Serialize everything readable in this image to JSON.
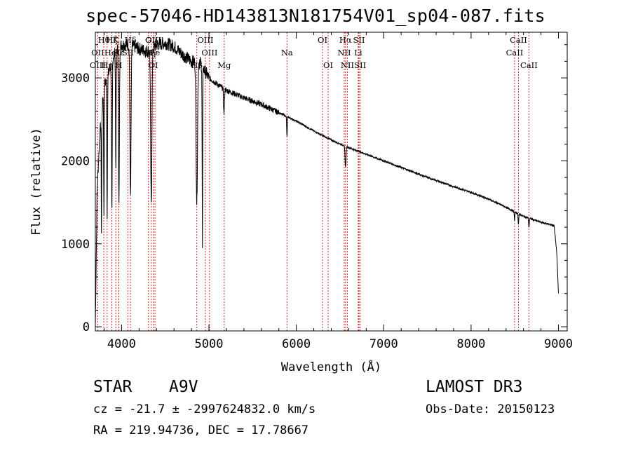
{
  "chart_data": {
    "type": "line",
    "title": "spec-57046-HD143813N181754V01_sp04-087.fits",
    "xlabel": "Wavelength (Å)",
    "ylabel": "Flux (relative)",
    "xlim": [
      3700,
      9100
    ],
    "ylim": [
      -50,
      3550
    ],
    "x_ticks": [
      4000,
      5000,
      6000,
      7000,
      8000,
      9000
    ],
    "y_ticks": [
      0,
      1000,
      2000,
      3000
    ],
    "spectrum": {
      "continuum": [
        [
          3700,
          0
        ],
        [
          3720,
          1650
        ],
        [
          3750,
          2300
        ],
        [
          3800,
          2900
        ],
        [
          3850,
          3050
        ],
        [
          3900,
          3250
        ],
        [
          3950,
          3350
        ],
        [
          4000,
          3400
        ],
        [
          4100,
          3400
        ],
        [
          4200,
          3350
        ],
        [
          4300,
          3320
        ],
        [
          4400,
          3400
        ],
        [
          4500,
          3420
        ],
        [
          4600,
          3380
        ],
        [
          4700,
          3280
        ],
        [
          4800,
          3200
        ],
        [
          4900,
          3180
        ],
        [
          5000,
          3000
        ],
        [
          5100,
          2920
        ],
        [
          5200,
          2850
        ],
        [
          5400,
          2760
        ],
        [
          5600,
          2680
        ],
        [
          5800,
          2580
        ],
        [
          6000,
          2480
        ],
        [
          6200,
          2360
        ],
        [
          6400,
          2250
        ],
        [
          6600,
          2160
        ],
        [
          6800,
          2080
        ],
        [
          7000,
          2000
        ],
        [
          7200,
          1920
        ],
        [
          7500,
          1800
        ],
        [
          7800,
          1690
        ],
        [
          8000,
          1620
        ],
        [
          8200,
          1540
        ],
        [
          8400,
          1440
        ],
        [
          8600,
          1330
        ],
        [
          8800,
          1260
        ],
        [
          8950,
          1220
        ],
        [
          8980,
          900
        ],
        [
          9000,
          400
        ]
      ],
      "absorption": [
        {
          "center": 3770,
          "depth": 1400,
          "width": 4
        },
        {
          "center": 3798,
          "depth": 1600,
          "width": 4
        },
        {
          "center": 3835,
          "depth": 1700,
          "width": 5
        },
        {
          "center": 3889,
          "depth": 1900,
          "width": 6
        },
        {
          "center": 3934,
          "depth": 1400,
          "width": 5
        },
        {
          "center": 3970,
          "depth": 1900,
          "width": 7
        },
        {
          "center": 4102,
          "depth": 1800,
          "width": 9
        },
        {
          "center": 4340,
          "depth": 1900,
          "width": 10
        },
        {
          "center": 4861,
          "depth": 1700,
          "width": 11
        },
        {
          "center": 4925,
          "depth": 2200,
          "width": 4
        },
        {
          "center": 5172,
          "depth": 300,
          "width": 7
        },
        {
          "center": 5893,
          "depth": 250,
          "width": 5
        },
        {
          "center": 6563,
          "depth": 250,
          "width": 8
        },
        {
          "center": 8498,
          "depth": 110,
          "width": 5
        },
        {
          "center": 8542,
          "depth": 130,
          "width": 5
        },
        {
          "center": 8662,
          "depth": 120,
          "width": 5
        }
      ]
    },
    "line_markers": [
      {
        "label": "Hθ",
        "wave": 3797,
        "row": 0
      },
      {
        "label": "OII",
        "wave": 3727,
        "row": 1
      },
      {
        "label": "OIII",
        "wave": 3727,
        "row": 2
      },
      {
        "label": "K",
        "wave": 3934,
        "row": 0
      },
      {
        "label": "HeI",
        "wave": 3889,
        "row": 1
      },
      {
        "label": "Hη",
        "wave": 3835,
        "row": 2
      },
      {
        "label": "Hζ",
        "wave": 3889,
        "row": 0
      },
      {
        "label": "Hε",
        "wave": 3970,
        "row": 1
      },
      {
        "label": "H",
        "wave": 3968,
        "row": 2
      },
      {
        "label": "Hδ",
        "wave": 4102,
        "row": 0
      },
      {
        "label": "SII",
        "wave": 4072,
        "row": 1
      },
      {
        "label": "G",
        "wave": 4307,
        "row": 0
      },
      {
        "label": "Hγ",
        "wave": 4340,
        "row": 1
      },
      {
        "label": "OIII",
        "wave": 4363,
        "row": 0
      },
      {
        "label": "Fe",
        "wave": 4383,
        "row": 1
      },
      {
        "label": "OI",
        "wave": 4363,
        "row": 2
      },
      {
        "label": "OIII",
        "wave": 4959,
        "row": 0
      },
      {
        "label": "OIII",
        "wave": 5007,
        "row": 1
      },
      {
        "label": "Hβ",
        "wave": 4861,
        "row": 2
      },
      {
        "label": "Mg",
        "wave": 5175,
        "row": 2
      },
      {
        "label": "Na",
        "wave": 5893,
        "row": 1
      },
      {
        "label": "OI",
        "wave": 6300,
        "row": 0
      },
      {
        "label": "OI",
        "wave": 6364,
        "row": 2
      },
      {
        "label": "Hα",
        "wave": 6563,
        "row": 0
      },
      {
        "label": "NII",
        "wave": 6548,
        "row": 1
      },
      {
        "label": "NII",
        "wave": 6584,
        "row": 2
      },
      {
        "label": "SII",
        "wave": 6717,
        "row": 0
      },
      {
        "label": "Li",
        "wave": 6708,
        "row": 1
      },
      {
        "label": "SII",
        "wave": 6731,
        "row": 2
      },
      {
        "label": "CaII",
        "wave": 8542,
        "row": 0
      },
      {
        "label": "CaII",
        "wave": 8498,
        "row": 1
      },
      {
        "label": "CaII",
        "wave": 8662,
        "row": 2
      }
    ]
  },
  "object_type": "STAR",
  "spectral_class": "A9V",
  "survey": "LAMOST DR3",
  "cz_line": "cz = -21.7 ± -2997624832.0 km/s",
  "obs_date": "Obs-Date: 20150123",
  "radec": "RA = 219.94736, DEC =  17.78667",
  "colors": {
    "marker_line": "#d42a2a",
    "spectrum": "#000000",
    "axes": "#000000"
  }
}
